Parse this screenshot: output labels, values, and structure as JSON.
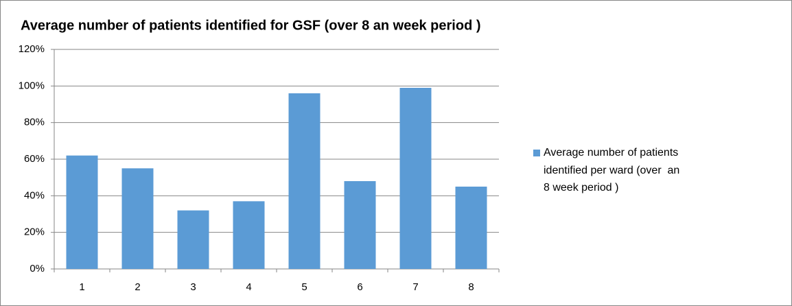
{
  "chart_data": {
    "type": "bar",
    "title": "Average number of patients identified for GSF (over 8 an week period )",
    "categories": [
      "1",
      "2",
      "3",
      "4",
      "5",
      "6",
      "7",
      "8"
    ],
    "series": [
      {
        "name": "Average number of patients identified per ward (over  an 8 week period )",
        "color": "#5b9bd5",
        "values": [
          62,
          55,
          32,
          37,
          96,
          48,
          99,
          45
        ]
      }
    ],
    "ylim": [
      0,
      120
    ],
    "yticks": [
      {
        "value": 0,
        "label": "0%"
      },
      {
        "value": 20,
        "label": "20%"
      },
      {
        "value": 40,
        "label": "40%"
      },
      {
        "value": 60,
        "label": "60%"
      },
      {
        "value": 80,
        "label": "80%"
      },
      {
        "value": 100,
        "label": "100%"
      },
      {
        "value": 120,
        "label": "120%"
      }
    ],
    "grid": true,
    "legend": "right"
  }
}
